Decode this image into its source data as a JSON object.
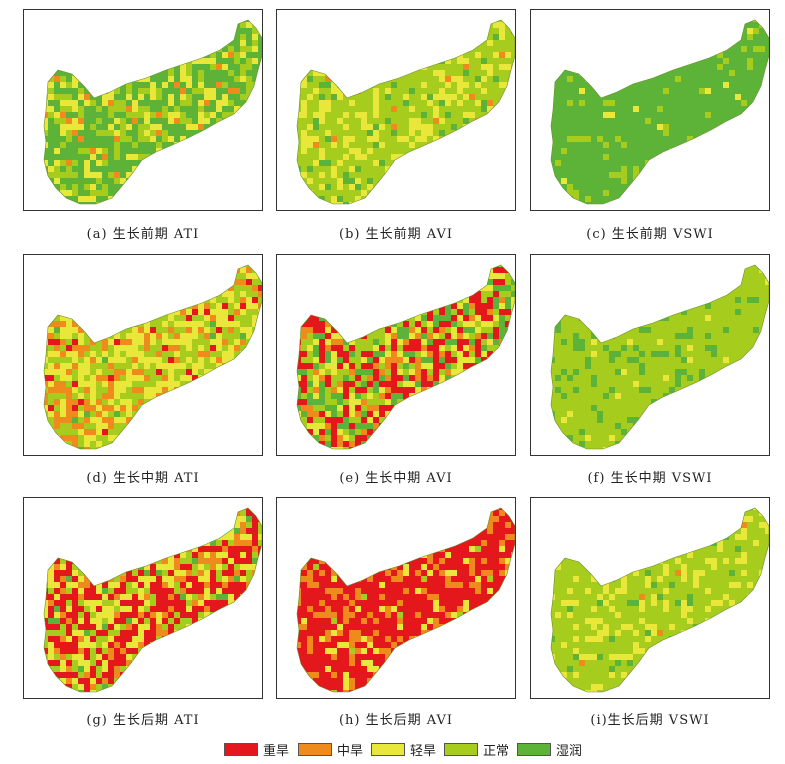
{
  "panels": [
    {
      "caption": "(a) 生长前期 ATI",
      "weights": [
        0.0,
        0.03,
        0.17,
        0.25,
        0.55
      ],
      "stripes": true
    },
    {
      "caption": "(b) 生长前期 AVI",
      "weights": [
        0.0,
        0.02,
        0.28,
        0.62,
        0.08
      ],
      "stripes": false
    },
    {
      "caption": "(c) 生长前期 VSWI",
      "weights": [
        0.0,
        0.0,
        0.02,
        0.1,
        0.88
      ],
      "stripes": false
    },
    {
      "caption": "(d) 生长中期 ATI",
      "weights": [
        0.04,
        0.22,
        0.34,
        0.36,
        0.04
      ],
      "stripes": true
    },
    {
      "caption": "(e) 生长中期 AVI",
      "weights": [
        0.3,
        0.1,
        0.18,
        0.2,
        0.22
      ],
      "stripes": false
    },
    {
      "caption": "(f) 生长中期 VSWI",
      "weights": [
        0.0,
        0.0,
        0.03,
        0.8,
        0.17
      ],
      "stripes": false
    },
    {
      "caption": "(g) 生长后期 ATI",
      "weights": [
        0.36,
        0.12,
        0.24,
        0.2,
        0.08
      ],
      "stripes": true
    },
    {
      "caption": "(h) 生长后期 AVI",
      "weights": [
        0.7,
        0.2,
        0.08,
        0.02,
        0.0
      ],
      "stripes": false
    },
    {
      "caption": "(i)生长后期 VSWI",
      "weights": [
        0.0,
        0.01,
        0.22,
        0.72,
        0.05
      ],
      "stripes": false
    }
  ],
  "legend": [
    {
      "label": "重旱",
      "color": "#e3171c"
    },
    {
      "label": "中旱",
      "color": "#ef8a1c"
    },
    {
      "label": "轻旱",
      "color": "#e9e83a"
    },
    {
      "label": "正常",
      "color": "#a6cc1e"
    },
    {
      "label": "湿润",
      "color": "#5cb338"
    }
  ]
}
